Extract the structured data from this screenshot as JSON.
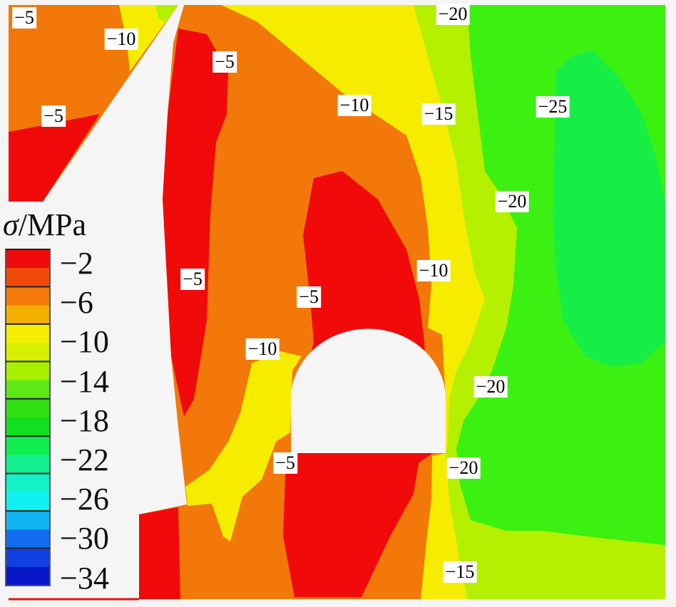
{
  "chart_data": {
    "type": "heatmap",
    "subtype": "stress contour map",
    "legend": {
      "title_symbol": "σ",
      "title_unit": "/MPa",
      "placement": "left",
      "tick_labels": [
        "−2",
        "−6",
        "−10",
        "−14",
        "−18",
        "−22",
        "−26",
        "−30",
        "−34"
      ],
      "colors": [
        "#ee0a0a",
        "#f04a0a",
        "#f57a0a",
        "#f4b000",
        "#f5ee00",
        "#d6f000",
        "#a8f000",
        "#5ee818",
        "#30e010",
        "#10e020",
        "#10ee50",
        "#12f090",
        "#14f0c8",
        "#10f0f0",
        "#10b4f0",
        "#106cf0",
        "#1040e0",
        "#0818c8"
      ]
    },
    "contour_labels": [
      "−5",
      "−10",
      "−5",
      "−5",
      "−10",
      "−15",
      "−25",
      "−20",
      "−20",
      "−10",
      "−5",
      "−5",
      "−10",
      "−20",
      "−5",
      "−20",
      "−15"
    ],
    "region_colors": {
      "red": "#f00a0a",
      "orange": "#f2780a",
      "yellow": "#f6ec00",
      "yellow_green": "#b4f000",
      "green": "#3cf012",
      "bright_green": "#16ee46",
      "void": "#f5f5f5"
    }
  }
}
